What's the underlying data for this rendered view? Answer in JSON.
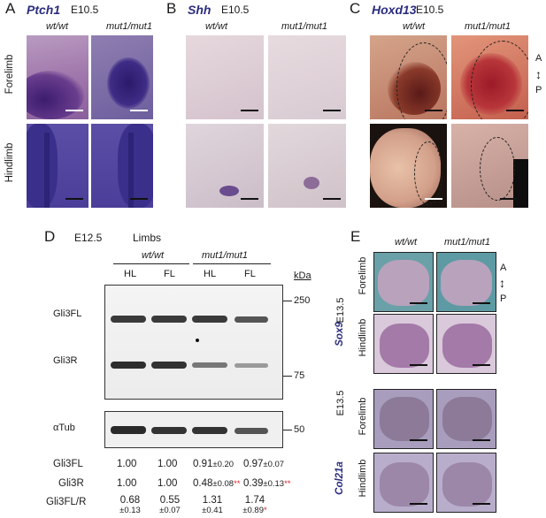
{
  "panels": {
    "A": {
      "letter": "A",
      "gene": "Ptch1",
      "stage": "E10.5",
      "col1": "wt/wt",
      "col2": "mut1/mut1",
      "row1": "Forelimb",
      "row2": "Hindlimb"
    },
    "B": {
      "letter": "B",
      "gene": "Shh",
      "stage": "E10.5",
      "col1": "wt/wt",
      "col2": "mut1/mut1"
    },
    "C": {
      "letter": "C",
      "gene": "Hoxd13",
      "stage": "E10.5",
      "col1": "wt/wt",
      "col2": "mut1/mut1",
      "axis_top": "A",
      "axis_bottom": "P"
    },
    "D": {
      "letter": "D",
      "stage": "E12.5",
      "tissue": "Limbs",
      "group1": "wt/wt",
      "group2": "mut1/mut1",
      "lanes": [
        "HL",
        "FL",
        "HL",
        "FL"
      ],
      "kda_label": "kDa",
      "markers": [
        "250",
        "75",
        "50"
      ],
      "band_labels": {
        "full": "Gli3FL",
        "repressor": "Gli3R",
        "tubulin": "αTub"
      },
      "quant": {
        "gli3fl": {
          "label": "Gli3FL",
          "values": [
            "1.00",
            "1.00",
            "0.91",
            "0.97"
          ],
          "sd": [
            "",
            "",
            "±0.20",
            "±0.07"
          ]
        },
        "gli3r": {
          "label": "Gli3R",
          "values": [
            "1.00",
            "1.00",
            "0.48",
            "0.39"
          ],
          "sd": [
            "",
            "",
            "±0.08",
            "±0.13"
          ],
          "sig": [
            "",
            "",
            "**",
            "**"
          ]
        },
        "ratio": {
          "label": "Gli3FL/R",
          "values": [
            "0.68",
            "0.55",
            "1.31",
            "1.74"
          ],
          "sd": [
            "±0.13",
            "±0.07",
            "±0.41",
            "±0.89"
          ],
          "sig": [
            "",
            "",
            "",
            "*"
          ]
        }
      }
    },
    "E": {
      "letter": "E",
      "col1": "wt/wt",
      "col2": "mut1/mut1",
      "gene1": "Sox9",
      "gene2": "Col21a",
      "stage1": "E13.5",
      "stage2": "E13.5",
      "row1": "Forelimb",
      "row2": "Hindlimb",
      "row3": "Forelimb",
      "row4": "Hindlimb",
      "axis_top": "A",
      "axis_bottom": "P"
    }
  },
  "colors": {
    "gene": "#2b2d7e",
    "significance": "#d6232a"
  }
}
